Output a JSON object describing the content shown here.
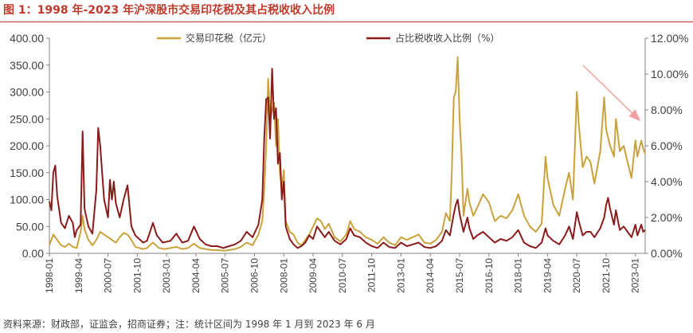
{
  "header": {
    "title": "图 1：1998 年-2023 年沪深股市交易印花税及其占税收收入比例"
  },
  "footer": {
    "source": "资料来源：财政部，证监会，招商证券；注：统计区间为 1998 年 1 月到 2023 年 6 月"
  },
  "chart_data": {
    "type": "line",
    "title": "图 1：1998 年-2023 年沪深股市交易印花税及其占税收收入比例",
    "legend_position": "top",
    "grid": false,
    "x_tick_labels": [
      "1998-01",
      "1999-04",
      "2000-07",
      "2001-10",
      "2003-01",
      "2004-04",
      "2005-07",
      "2006-10",
      "2008-01",
      "2009-04",
      "2010-07",
      "2011-10",
      "2013-01",
      "2014-04",
      "2015-07",
      "2016-10",
      "2018-01",
      "2019-04",
      "2020-07",
      "2021-10",
      "2023-01"
    ],
    "x_range": [
      "1998-01",
      "2023-06"
    ],
    "y_left": {
      "ticks": [
        "0.00",
        "50.00",
        "100.00",
        "150.00",
        "200.00",
        "250.00",
        "300.00",
        "350.00",
        "400.00"
      ],
      "range": [
        0,
        400
      ]
    },
    "y_right": {
      "ticks": [
        "0.00%",
        "2.00%",
        "4.00%",
        "6.00%",
        "8.00%",
        "10.00%",
        "12.00%"
      ],
      "range": [
        0,
        12
      ]
    },
    "series": [
      {
        "name": "交易印花税（亿元）",
        "axis": "left",
        "color": "#c9a23c",
        "points": [
          [
            "1998-01",
            15
          ],
          [
            "1998-03",
            35
          ],
          [
            "1998-05",
            25
          ],
          [
            "1998-07",
            15
          ],
          [
            "1998-09",
            12
          ],
          [
            "1998-11",
            18
          ],
          [
            "1999-01",
            12
          ],
          [
            "1999-03",
            10
          ],
          [
            "1999-05",
            40
          ],
          [
            "1999-06",
            70
          ],
          [
            "1999-07",
            45
          ],
          [
            "1999-09",
            25
          ],
          [
            "1999-11",
            15
          ],
          [
            "2000-01",
            25
          ],
          [
            "2000-03",
            40
          ],
          [
            "2000-05",
            35
          ],
          [
            "2000-07",
            30
          ],
          [
            "2000-09",
            25
          ],
          [
            "2000-11",
            20
          ],
          [
            "2001-01",
            30
          ],
          [
            "2001-03",
            38
          ],
          [
            "2001-05",
            35
          ],
          [
            "2001-07",
            25
          ],
          [
            "2001-09",
            12
          ],
          [
            "2001-11",
            10
          ],
          [
            "2002-01",
            8
          ],
          [
            "2002-03",
            10
          ],
          [
            "2002-06",
            20
          ],
          [
            "2002-09",
            10
          ],
          [
            "2002-12",
            8
          ],
          [
            "2003-03",
            10
          ],
          [
            "2003-06",
            12
          ],
          [
            "2003-09",
            8
          ],
          [
            "2003-12",
            10
          ],
          [
            "2004-03",
            18
          ],
          [
            "2004-06",
            10
          ],
          [
            "2004-09",
            8
          ],
          [
            "2004-12",
            6
          ],
          [
            "2005-03",
            6
          ],
          [
            "2005-06",
            5
          ],
          [
            "2005-09",
            6
          ],
          [
            "2005-12",
            8
          ],
          [
            "2006-03",
            12
          ],
          [
            "2006-06",
            20
          ],
          [
            "2006-09",
            15
          ],
          [
            "2006-12",
            35
          ],
          [
            "2007-02",
            60
          ],
          [
            "2007-03",
            120
          ],
          [
            "2007-04",
            200
          ],
          [
            "2007-05",
            325
          ],
          [
            "2007-06",
            250
          ],
          [
            "2007-08",
            280
          ],
          [
            "2007-09",
            200
          ],
          [
            "2007-10",
            250
          ],
          [
            "2007-11",
            150
          ],
          [
            "2007-12",
            120
          ],
          [
            "2008-01",
            155
          ],
          [
            "2008-02",
            60
          ],
          [
            "2008-04",
            40
          ],
          [
            "2008-06",
            35
          ],
          [
            "2008-08",
            20
          ],
          [
            "2008-10",
            15
          ],
          [
            "2008-12",
            25
          ],
          [
            "2009-02",
            35
          ],
          [
            "2009-04",
            50
          ],
          [
            "2009-06",
            65
          ],
          [
            "2009-08",
            60
          ],
          [
            "2009-10",
            45
          ],
          [
            "2009-12",
            55
          ],
          [
            "2010-03",
            30
          ],
          [
            "2010-06",
            22
          ],
          [
            "2010-09",
            35
          ],
          [
            "2010-11",
            60
          ],
          [
            "2011-01",
            45
          ],
          [
            "2011-04",
            40
          ],
          [
            "2011-07",
            30
          ],
          [
            "2011-10",
            25
          ],
          [
            "2012-01",
            18
          ],
          [
            "2012-04",
            30
          ],
          [
            "2012-07",
            20
          ],
          [
            "2012-10",
            15
          ],
          [
            "2013-01",
            30
          ],
          [
            "2013-04",
            25
          ],
          [
            "2013-07",
            30
          ],
          [
            "2013-10",
            35
          ],
          [
            "2014-01",
            20
          ],
          [
            "2014-04",
            18
          ],
          [
            "2014-07",
            25
          ],
          [
            "2014-10",
            40
          ],
          [
            "2014-12",
            75
          ],
          [
            "2015-02",
            60
          ],
          [
            "2015-03",
            150
          ],
          [
            "2015-04",
            290
          ],
          [
            "2015-05",
            300
          ],
          [
            "2015-06",
            365
          ],
          [
            "2015-07",
            250
          ],
          [
            "2015-08",
            180
          ],
          [
            "2015-09",
            70
          ],
          [
            "2015-11",
            120
          ],
          [
            "2015-12",
            95
          ],
          [
            "2016-02",
            70
          ],
          [
            "2016-04",
            85
          ],
          [
            "2016-07",
            110
          ],
          [
            "2016-10",
            95
          ],
          [
            "2017-01",
            60
          ],
          [
            "2017-04",
            70
          ],
          [
            "2017-07",
            65
          ],
          [
            "2017-10",
            80
          ],
          [
            "2018-01",
            110
          ],
          [
            "2018-04",
            70
          ],
          [
            "2018-07",
            50
          ],
          [
            "2018-10",
            40
          ],
          [
            "2019-01",
            55
          ],
          [
            "2019-03",
            180
          ],
          [
            "2019-04",
            140
          ],
          [
            "2019-07",
            90
          ],
          [
            "2019-10",
            70
          ],
          [
            "2020-01",
            120
          ],
          [
            "2020-03",
            150
          ],
          [
            "2020-05",
            100
          ],
          [
            "2020-07",
            300
          ],
          [
            "2020-08",
            240
          ],
          [
            "2020-10",
            160
          ],
          [
            "2020-12",
            180
          ],
          [
            "2021-02",
            170
          ],
          [
            "2021-04",
            130
          ],
          [
            "2021-07",
            190
          ],
          [
            "2021-09",
            290
          ],
          [
            "2021-10",
            230
          ],
          [
            "2021-12",
            200
          ],
          [
            "2022-02",
            180
          ],
          [
            "2022-03",
            250
          ],
          [
            "2022-05",
            190
          ],
          [
            "2022-07",
            200
          ],
          [
            "2022-09",
            170
          ],
          [
            "2022-11",
            140
          ],
          [
            "2023-01",
            210
          ],
          [
            "2023-02",
            180
          ],
          [
            "2023-04",
            210
          ],
          [
            "2023-05",
            195
          ],
          [
            "2023-06",
            185
          ]
        ]
      },
      {
        "name": "占比税收收入比例（%）",
        "axis": "right",
        "color": "#8b1a1a",
        "points": [
          [
            "1998-01",
            2.9
          ],
          [
            "1998-02",
            2.4
          ],
          [
            "1998-03",
            4.5
          ],
          [
            "1998-04",
            4.9
          ],
          [
            "1998-05",
            3.2
          ],
          [
            "1998-07",
            1.7
          ],
          [
            "1998-09",
            1.4
          ],
          [
            "1998-11",
            2.1
          ],
          [
            "1999-01",
            1.7
          ],
          [
            "1999-02",
            0.9
          ],
          [
            "1999-03",
            1.3
          ],
          [
            "1999-05",
            1.6
          ],
          [
            "1999-06",
            6.8
          ],
          [
            "1999-07",
            2.5
          ],
          [
            "1999-09",
            1.5
          ],
          [
            "1999-11",
            1.1
          ],
          [
            "2000-01",
            3.5
          ],
          [
            "2000-02",
            7.0
          ],
          [
            "2000-03",
            6.0
          ],
          [
            "2000-05",
            3.0
          ],
          [
            "2000-07",
            2.0
          ],
          [
            "2000-08",
            4.1
          ],
          [
            "2000-09",
            3.0
          ],
          [
            "2000-10",
            4.0
          ],
          [
            "2000-11",
            2.8
          ],
          [
            "2001-01",
            2.0
          ],
          [
            "2001-03",
            3.0
          ],
          [
            "2001-05",
            3.8
          ],
          [
            "2001-07",
            1.5
          ],
          [
            "2001-09",
            1.0
          ],
          [
            "2001-11",
            0.8
          ],
          [
            "2002-01",
            0.6
          ],
          [
            "2002-03",
            0.7
          ],
          [
            "2002-06",
            1.7
          ],
          [
            "2002-08",
            1.0
          ],
          [
            "2002-11",
            0.6
          ],
          [
            "2003-03",
            0.7
          ],
          [
            "2003-06",
            1.1
          ],
          [
            "2003-09",
            0.6
          ],
          [
            "2003-12",
            0.7
          ],
          [
            "2004-03",
            1.5
          ],
          [
            "2004-06",
            0.8
          ],
          [
            "2004-09",
            0.5
          ],
          [
            "2004-12",
            0.4
          ],
          [
            "2005-03",
            0.4
          ],
          [
            "2005-06",
            0.3
          ],
          [
            "2005-09",
            0.4
          ],
          [
            "2005-12",
            0.5
          ],
          [
            "2006-03",
            0.7
          ],
          [
            "2006-06",
            1.2
          ],
          [
            "2006-09",
            0.9
          ],
          [
            "2006-12",
            1.6
          ],
          [
            "2007-02",
            3.0
          ],
          [
            "2007-03",
            6.5
          ],
          [
            "2007-04",
            8.6
          ],
          [
            "2007-05",
            8.7
          ],
          [
            "2007-06",
            6.4
          ],
          [
            "2007-07",
            10.3
          ],
          [
            "2007-08",
            7.5
          ],
          [
            "2007-09",
            8.1
          ],
          [
            "2007-10",
            5.0
          ],
          [
            "2007-11",
            5.6
          ],
          [
            "2007-12",
            3.0
          ],
          [
            "2008-01",
            4.0
          ],
          [
            "2008-02",
            1.5
          ],
          [
            "2008-04",
            0.8
          ],
          [
            "2008-06",
            0.5
          ],
          [
            "2008-08",
            0.3
          ],
          [
            "2008-10",
            0.4
          ],
          [
            "2008-12",
            0.6
          ],
          [
            "2009-02",
            1.0
          ],
          [
            "2009-04",
            0.8
          ],
          [
            "2009-06",
            1.5
          ],
          [
            "2009-08",
            1.2
          ],
          [
            "2009-10",
            0.9
          ],
          [
            "2009-12",
            1.2
          ],
          [
            "2010-03",
            0.7
          ],
          [
            "2010-06",
            0.5
          ],
          [
            "2010-09",
            0.8
          ],
          [
            "2010-11",
            1.4
          ],
          [
            "2011-01",
            1.0
          ],
          [
            "2011-04",
            0.9
          ],
          [
            "2011-07",
            0.6
          ],
          [
            "2011-10",
            0.4
          ],
          [
            "2012-01",
            0.3
          ],
          [
            "2012-04",
            0.6
          ],
          [
            "2012-07",
            0.35
          ],
          [
            "2012-10",
            0.3
          ],
          [
            "2013-01",
            0.6
          ],
          [
            "2013-04",
            0.4
          ],
          [
            "2013-07",
            0.5
          ],
          [
            "2013-10",
            0.6
          ],
          [
            "2014-01",
            0.35
          ],
          [
            "2014-04",
            0.3
          ],
          [
            "2014-07",
            0.4
          ],
          [
            "2014-10",
            0.7
          ],
          [
            "2014-12",
            1.3
          ],
          [
            "2015-02",
            1.0
          ],
          [
            "2015-04",
            2.2
          ],
          [
            "2015-05",
            2.7
          ],
          [
            "2015-06",
            3.0
          ],
          [
            "2015-07",
            2.2
          ],
          [
            "2015-09",
            1.2
          ],
          [
            "2015-11",
            2.0
          ],
          [
            "2015-12",
            1.4
          ],
          [
            "2016-02",
            0.8
          ],
          [
            "2016-04",
            1.0
          ],
          [
            "2016-07",
            1.2
          ],
          [
            "2016-10",
            0.9
          ],
          [
            "2017-01",
            0.6
          ],
          [
            "2017-04",
            0.8
          ],
          [
            "2017-07",
            0.7
          ],
          [
            "2017-10",
            0.9
          ],
          [
            "2018-01",
            1.3
          ],
          [
            "2018-04",
            0.6
          ],
          [
            "2018-07",
            0.4
          ],
          [
            "2018-10",
            0.3
          ],
          [
            "2019-01",
            0.6
          ],
          [
            "2019-03",
            1.4
          ],
          [
            "2019-04",
            1.0
          ],
          [
            "2019-07",
            0.7
          ],
          [
            "2019-10",
            0.5
          ],
          [
            "2020-01",
            1.0
          ],
          [
            "2020-03",
            1.5
          ],
          [
            "2020-05",
            0.8
          ],
          [
            "2020-07",
            2.3
          ],
          [
            "2020-08",
            1.8
          ],
          [
            "2020-10",
            1.0
          ],
          [
            "2020-12",
            1.2
          ],
          [
            "2021-02",
            1.2
          ],
          [
            "2021-04",
            0.9
          ],
          [
            "2021-07",
            1.4
          ],
          [
            "2021-09",
            2.0
          ],
          [
            "2021-10",
            2.7
          ],
          [
            "2021-11",
            3.1
          ],
          [
            "2021-12",
            2.5
          ],
          [
            "2022-02",
            1.6
          ],
          [
            "2022-03",
            2.4
          ],
          [
            "2022-05",
            1.3
          ],
          [
            "2022-07",
            1.5
          ],
          [
            "2022-09",
            1.2
          ],
          [
            "2022-11",
            0.9
          ],
          [
            "2023-01",
            1.6
          ],
          [
            "2023-02",
            1.0
          ],
          [
            "2023-04",
            1.6
          ],
          [
            "2023-05",
            1.2
          ],
          [
            "2023-06",
            1.3
          ]
        ]
      }
    ],
    "annotations": [
      {
        "type": "arrow",
        "color": "#f0a0a0",
        "meaning": "downward trend 2021-2023"
      }
    ]
  }
}
